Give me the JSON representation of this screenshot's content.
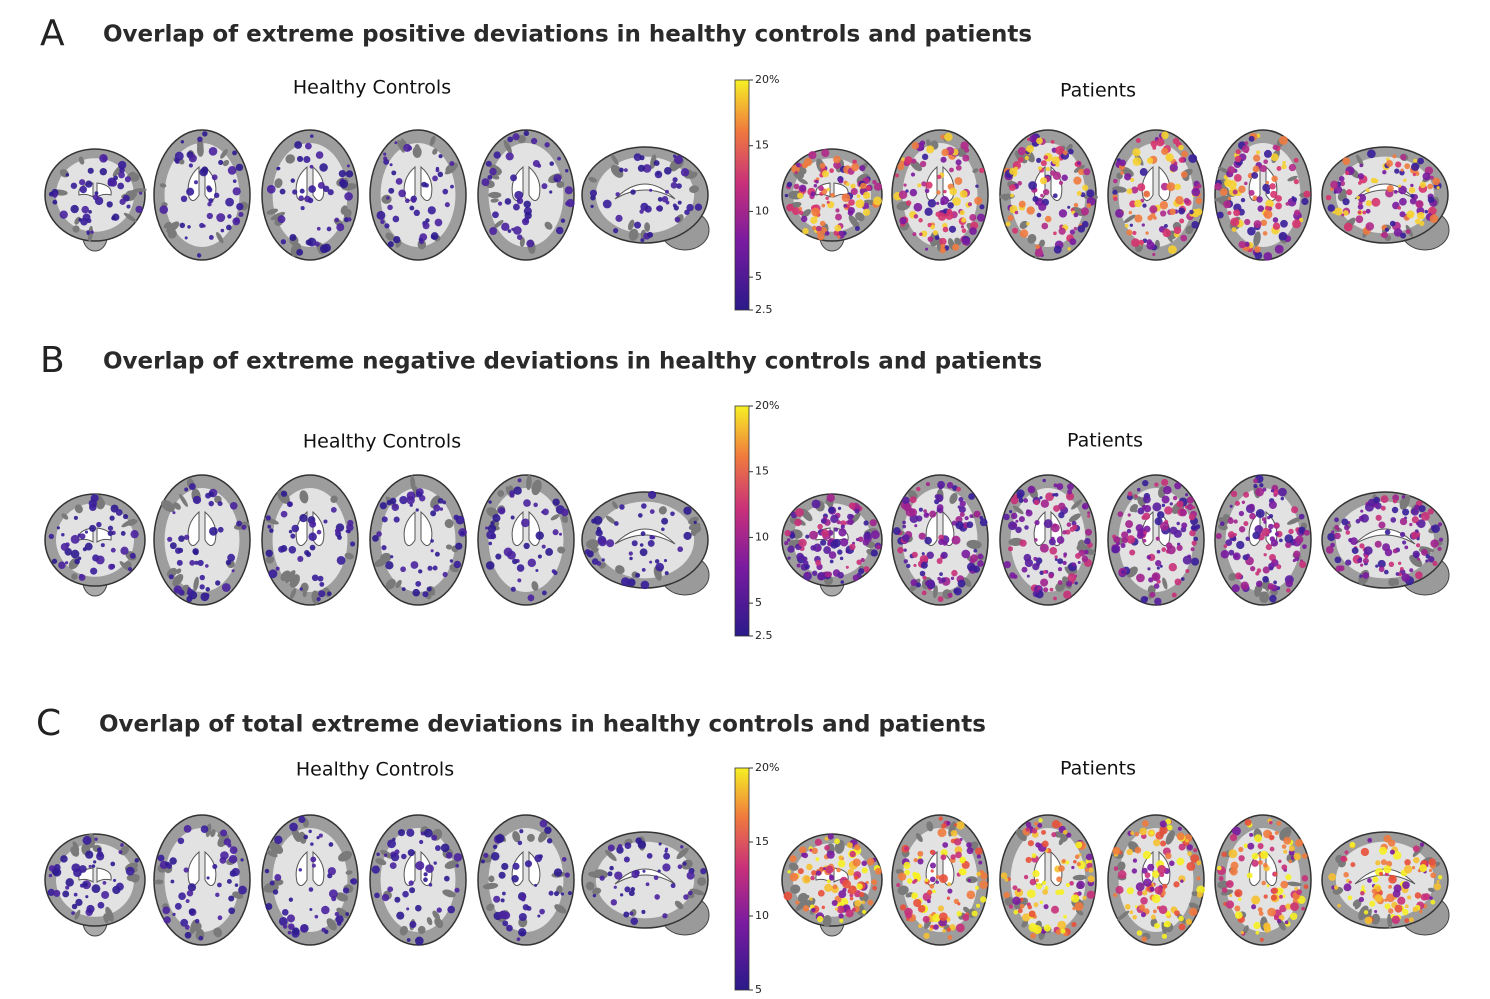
{
  "panels": [
    {
      "letter": "A",
      "title": "Overlap of extreme positive deviations in healthy controls and patients",
      "left_label": "Healthy Controls",
      "right_label": "Patients",
      "colorbar": {
        "lim": [
          2.5,
          20
        ],
        "ticks": [
          {
            "value": 20,
            "label": "20%"
          },
          15,
          10,
          5,
          2.5
        ]
      }
    },
    {
      "letter": "B",
      "title": "Overlap of extreme negative deviations in healthy controls and patients",
      "left_label": "Healthy Controls",
      "right_label": "Patients",
      "colorbar": {
        "lim": [
          2.5,
          20
        ],
        "ticks": [
          {
            "value": 20,
            "label": "20%"
          },
          15,
          10,
          5,
          2.5
        ]
      }
    },
    {
      "letter": "C",
      "title": "Overlap of total extreme deviations in healthy controls and patients",
      "left_label": "Healthy Controls",
      "right_label": "Patients",
      "colorbar": {
        "lim": [
          5,
          20
        ],
        "ticks": [
          {
            "value": 20,
            "label": "20%"
          },
          15,
          10,
          5
        ]
      }
    }
  ]
}
